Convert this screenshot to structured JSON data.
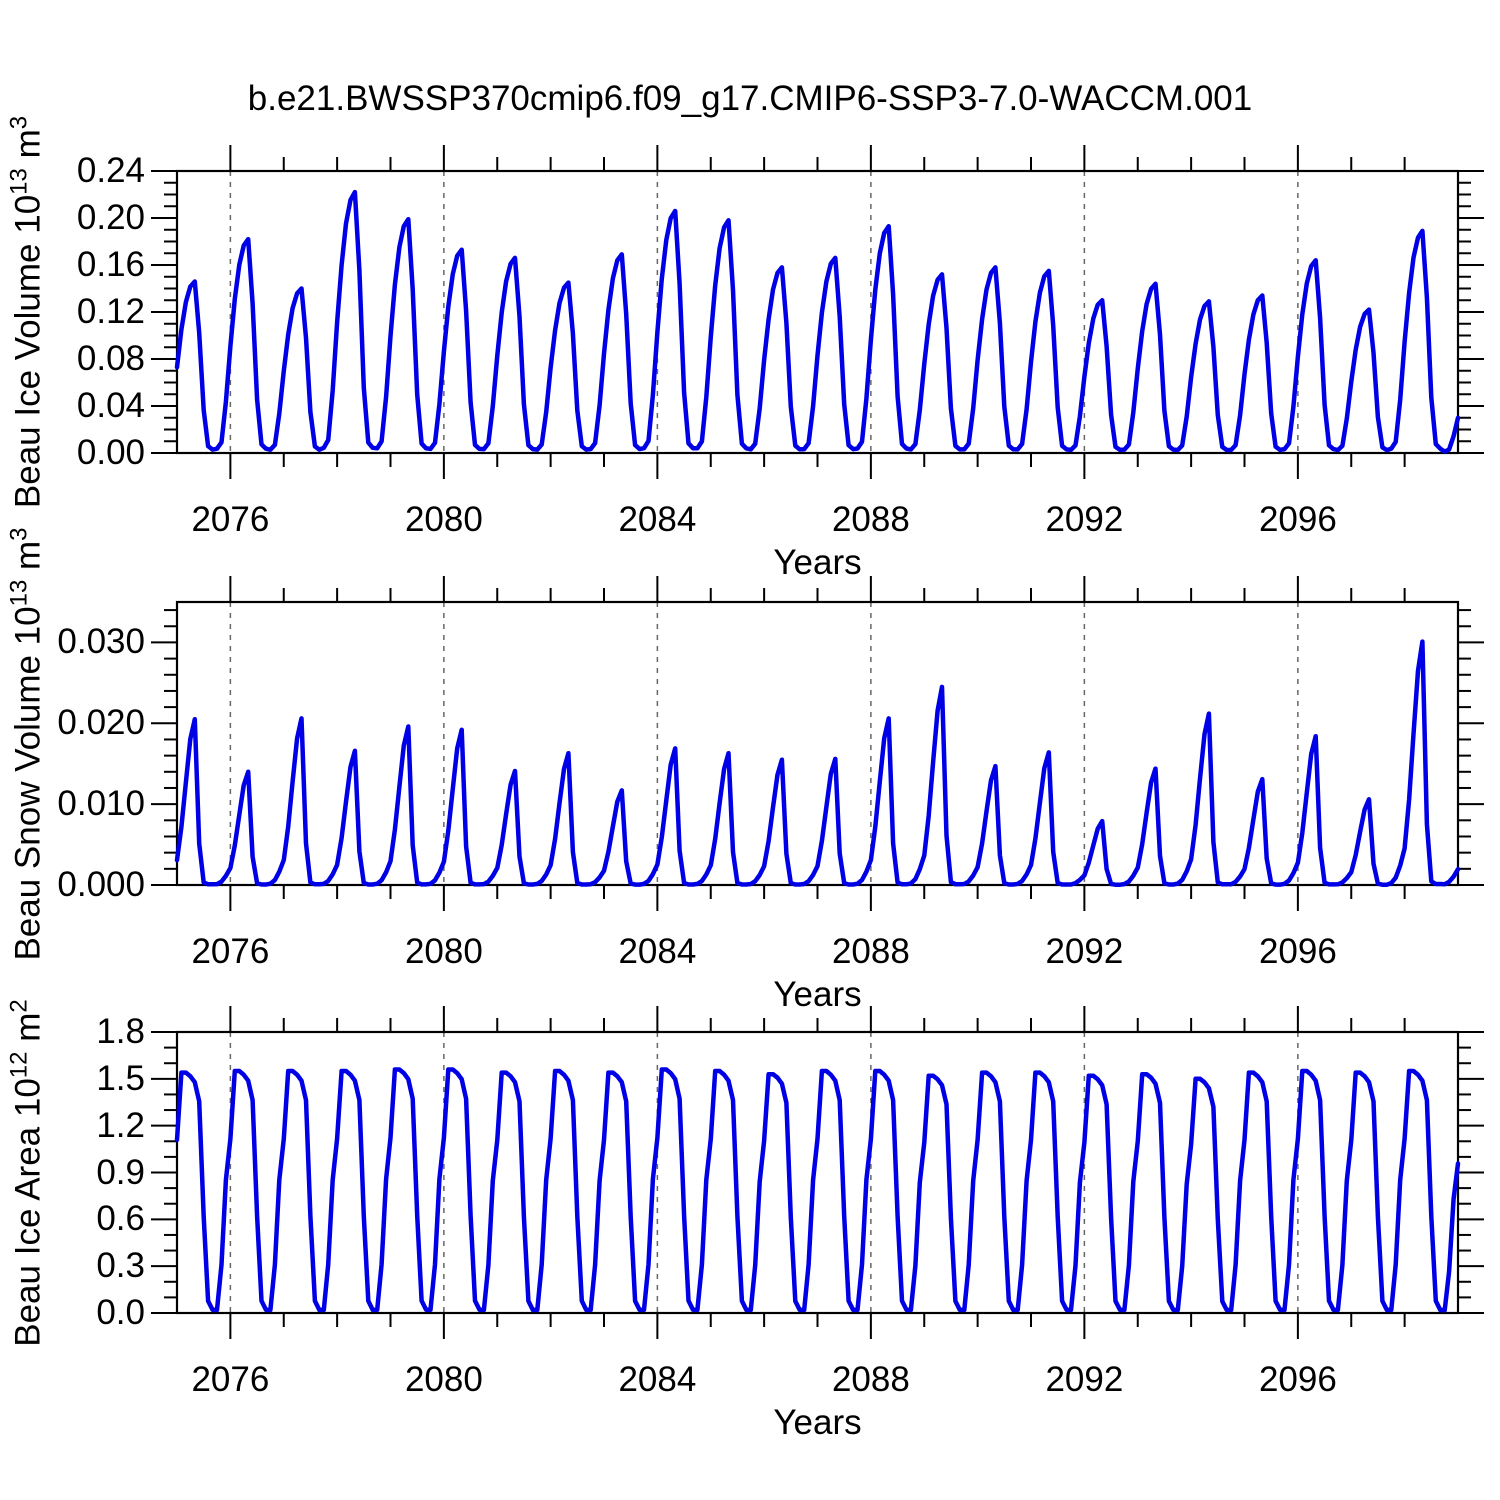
{
  "title": "b.e21.BWSSP370cmip6.f09_g17.CMIP6-SSP3-7.0-WACCM.001",
  "colors": {
    "line": "#0000E6",
    "grid": "#666666",
    "axis": "#000000",
    "background": "#FFFFFF",
    "text": "#000000"
  },
  "x_axis": {
    "label": "Years",
    "range": [
      2075,
      2099
    ],
    "major_tick_years": [
      2076,
      2080,
      2084,
      2088,
      2092,
      2096
    ],
    "major_tick_labels": [
      "2076",
      "2080",
      "2084",
      "2088",
      "2092",
      "2096"
    ],
    "minor_tick_step_years": 1,
    "gridlines": "dashed-vertical-at-major-ticks"
  },
  "chart_data": [
    {
      "type": "line",
      "panel": "beau-ice-volume",
      "ylabel_plain": "Beau Ice Volume 10^13 m^3",
      "ylabel_segments": [
        [
          "Beau Ice Volume 10",
          false
        ],
        [
          "13",
          true
        ],
        [
          " m",
          false
        ],
        [
          "3",
          true
        ]
      ],
      "xlabel": "Years",
      "ylim": [
        0,
        0.24
      ],
      "ytick_values": [
        0.0,
        0.04,
        0.08,
        0.12,
        0.16,
        0.2,
        0.24
      ],
      "ytick_labels": [
        "0.00",
        "0.04",
        "0.08",
        "0.12",
        "0.16",
        "0.20",
        "0.24"
      ],
      "yminor_step": 0.01,
      "seasonality": "monthly values = annual_peaks[cycle_year] * monthly_profile[month]; Oct-Dec belong to next cycle year; peak occurs in May, minimum Aug-Oct",
      "x_years": [
        2075,
        2076,
        2077,
        2078,
        2079,
        2080,
        2081,
        2082,
        2083,
        2084,
        2085,
        2086,
        2087,
        2088,
        2089,
        2090,
        2091,
        2092,
        2093,
        2094,
        2095,
        2096,
        2097,
        2098
      ],
      "annual_peaks": [
        0.146,
        0.182,
        0.14,
        0.222,
        0.199,
        0.173,
        0.166,
        0.145,
        0.169,
        0.206,
        0.198,
        0.158,
        0.166,
        0.193,
        0.152,
        0.158,
        0.155,
        0.13,
        0.144,
        0.129,
        0.134,
        0.164,
        0.122,
        0.189
      ],
      "next_year_peak": 0.06,
      "monthly_profile": [
        0.5,
        0.72,
        0.88,
        0.97,
        1.0,
        0.7,
        0.25,
        0.04,
        0.02,
        0.02,
        0.05,
        0.24
      ]
    },
    {
      "type": "line",
      "panel": "beau-snow-volume",
      "ylabel_plain": "Beau Snow Volume 10^13 m^3",
      "ylabel_segments": [
        [
          "Beau Snow Volume 10",
          false
        ],
        [
          "13",
          true
        ],
        [
          " m",
          false
        ],
        [
          "3",
          true
        ]
      ],
      "xlabel": "Years",
      "ylim": [
        0,
        0.035
      ],
      "ytick_values": [
        0.0,
        0.01,
        0.02,
        0.03
      ],
      "ytick_labels": [
        "0.000",
        "0.010",
        "0.020",
        "0.030"
      ],
      "yminor_step": 0.002,
      "seasonality": "monthly values = annual_peaks[cycle_year] * monthly_profile[month]; Oct-Dec belong to next cycle year; sharp peak in May, near-zero Jul-Oct",
      "x_years": [
        2075,
        2076,
        2077,
        2078,
        2079,
        2080,
        2081,
        2082,
        2083,
        2084,
        2085,
        2086,
        2087,
        2088,
        2089,
        2090,
        2091,
        2092,
        2093,
        2094,
        2095,
        2096,
        2097,
        2098
      ],
      "annual_peaks": [
        0.0205,
        0.014,
        0.0206,
        0.0166,
        0.0196,
        0.0192,
        0.0141,
        0.0163,
        0.0117,
        0.0169,
        0.0163,
        0.0155,
        0.0156,
        0.0206,
        0.0245,
        0.0147,
        0.0164,
        0.0079,
        0.0144,
        0.0212,
        0.0131,
        0.0184,
        0.0106,
        0.0301
      ],
      "next_year_peak": 0.013,
      "monthly_profile": [
        0.15,
        0.35,
        0.62,
        0.88,
        1.0,
        0.25,
        0.015,
        0.004,
        0.004,
        0.008,
        0.03,
        0.08
      ]
    },
    {
      "type": "line",
      "panel": "beau-ice-area",
      "ylabel_plain": "Beau Ice Area 10^12 m^2",
      "ylabel_segments": [
        [
          "Beau Ice Area 10",
          false
        ],
        [
          "12",
          true
        ],
        [
          " m",
          false
        ],
        [
          "2",
          true
        ]
      ],
      "xlabel": "Years",
      "ylim": [
        0,
        1.8
      ],
      "ytick_values": [
        0.0,
        0.3,
        0.6,
        0.9,
        1.2,
        1.5,
        1.8
      ],
      "ytick_labels": [
        "0.0",
        "0.3",
        "0.6",
        "0.9",
        "1.2",
        "1.5",
        "1.8"
      ],
      "yminor_step": 0.1,
      "seasonality": "monthly values = annual_peaks[cycle_year] * monthly_profile[month]; Oct-Dec belong to next cycle year; flat-topped plateau Feb-May near 1.5, minimum Aug-Oct near 0",
      "x_years": [
        2075,
        2076,
        2077,
        2078,
        2079,
        2080,
        2081,
        2082,
        2083,
        2084,
        2085,
        2086,
        2087,
        2088,
        2089,
        2090,
        2091,
        2092,
        2093,
        2094,
        2095,
        2096,
        2097,
        2098
      ],
      "annual_peaks": [
        1.54,
        1.55,
        1.55,
        1.55,
        1.56,
        1.56,
        1.54,
        1.55,
        1.54,
        1.56,
        1.55,
        1.53,
        1.55,
        1.55,
        1.52,
        1.54,
        1.54,
        1.52,
        1.53,
        1.5,
        1.54,
        1.55,
        1.54,
        1.55
      ],
      "next_year_peak": 1.33,
      "monthly_profile": [
        0.72,
        1.0,
        1.0,
        0.985,
        0.96,
        0.88,
        0.4,
        0.05,
        0.013,
        0.013,
        0.2,
        0.55
      ]
    }
  ]
}
